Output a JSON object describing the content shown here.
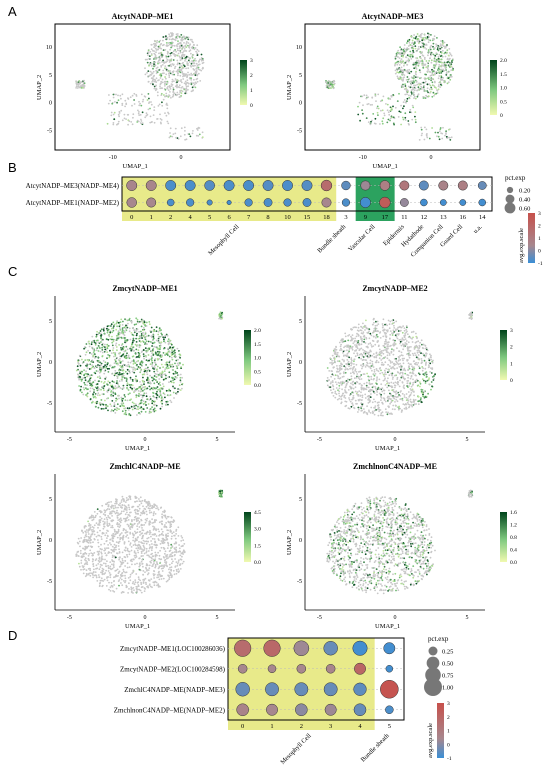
{
  "panels": [
    "A",
    "B",
    "C",
    "D"
  ],
  "colors": {
    "bg": "#ffffff",
    "grey": "#c8c8c8",
    "green_lo": "#d9f0a3",
    "green_mid": "#41ab5d",
    "green_hi": "#00441b",
    "yellow_band": "#e8ea8a",
    "teal_band": "#2ca25f",
    "dot_blue": "#3a8fd6",
    "dot_red": "#c7504b",
    "dot_mid": "#a7878e"
  },
  "chart_data": [
    {
      "type": "scatter",
      "panel": "A",
      "title": "AtcytNADP–ME1",
      "xlabel": "UMAP_1",
      "ylabel": "UMAP_2",
      "x_ticks": [
        "-10",
        "0"
      ],
      "y_ticks": [
        "10",
        "5",
        "0",
        "-5"
      ],
      "colorbar_ticks": [
        "3",
        "2",
        "1",
        "0"
      ]
    },
    {
      "type": "scatter",
      "panel": "A",
      "title": "AtcytNADP–ME3",
      "xlabel": "UMAP_1",
      "ylabel": "UMAP_2",
      "x_ticks": [
        "-10",
        "0"
      ],
      "y_ticks": [
        "10",
        "5",
        "0",
        "-5"
      ],
      "colorbar_ticks": [
        "2.0",
        "1.5",
        "1.0",
        "0.5",
        "0"
      ]
    },
    {
      "type": "dotplot",
      "panel": "B",
      "rows": [
        "AtcytNADP–ME3(NADP–ME4)",
        "AtcytNADP–ME1(NADP–ME2)"
      ],
      "clusters": [
        "0",
        "1",
        "2",
        "4",
        "5",
        "6",
        "7",
        "8",
        "10",
        "15",
        "18",
        "3",
        "9",
        "17",
        "11",
        "12",
        "13",
        "16",
        "14"
      ],
      "groups": [
        {
          "label": "Mesophyll Cell",
          "count": 11,
          "band": "yellow"
        },
        {
          "label": "Bundle sheath",
          "count": 1,
          "band": "none"
        },
        {
          "label": "Vascular Cell",
          "count": 2,
          "band": "teal"
        },
        {
          "label": "Epidermis",
          "count": 1,
          "band": "none"
        },
        {
          "label": "Hydathode",
          "count": 1,
          "band": "none"
        },
        {
          "label": "Companion Cell",
          "count": 1,
          "band": "none"
        },
        {
          "label": "Guard Cell",
          "count": 1,
          "band": "none"
        },
        {
          "label": "u.a.",
          "count": 1,
          "band": "none"
        }
      ],
      "pct_exp": [
        [
          0.55,
          0.55,
          0.55,
          0.55,
          0.52,
          0.55,
          0.55,
          0.55,
          0.55,
          0.55,
          0.6,
          0.4,
          0.45,
          0.5,
          0.45,
          0.45,
          0.45,
          0.45,
          0.35
        ],
        [
          0.5,
          0.45,
          0.25,
          0.3,
          0.15,
          0.1,
          0.3,
          0.35,
          0.3,
          0.35,
          0.45,
          0.3,
          0.55,
          0.6,
          0.35,
          0.25,
          0.2,
          0.2,
          0.25
        ]
      ],
      "avg_exp_scale": [
        [
          0.3,
          0.3,
          -0.8,
          -0.8,
          -0.7,
          -0.8,
          -0.8,
          -0.7,
          -0.8,
          -0.7,
          1.6,
          -0.6,
          0.1,
          0.6,
          1.0,
          -0.6,
          0.4,
          0.6,
          -0.5
        ],
        [
          0.2,
          0.2,
          -0.8,
          -0.8,
          -0.8,
          -0.9,
          -0.8,
          -0.8,
          -0.8,
          -0.8,
          0.2,
          -0.8,
          -0.9,
          2.4,
          0.0,
          -0.9,
          -0.9,
          -0.9,
          -0.9
        ]
      ],
      "legend_size_title": "pct.exp",
      "legend_size_labels": [
        "0.20",
        "0.40",
        "0.60"
      ],
      "legend_color_title": "avg.exp.scale",
      "legend_color_ticks": [
        "3",
        "2",
        "1",
        "0",
        "-1"
      ]
    },
    {
      "type": "scatter",
      "panel": "C",
      "title": "ZmcytNADP–ME1",
      "xlabel": "UMAP_1",
      "ylabel": "UMAP_2",
      "x_ticks": [
        "-5",
        "0",
        "5"
      ],
      "y_ticks": [
        "5",
        "0",
        "-5"
      ],
      "colorbar_ticks": [
        "2.0",
        "1.5",
        "1.0",
        "0.5",
        "0.0"
      ]
    },
    {
      "type": "scatter",
      "panel": "C",
      "title": "ZmcytNADP–ME2",
      "xlabel": "UMAP_1",
      "ylabel": "UMAP_2",
      "x_ticks": [
        "-5",
        "0",
        "5"
      ],
      "y_ticks": [
        "5",
        "0",
        "-5"
      ],
      "colorbar_ticks": [
        "3",
        "2",
        "1",
        "0"
      ]
    },
    {
      "type": "scatter",
      "panel": "C",
      "title": "ZmchlC4NADP–ME",
      "xlabel": "UMAP_1",
      "ylabel": "UMAP_2",
      "x_ticks": [
        "-5",
        "0",
        "5"
      ],
      "y_ticks": [
        "5",
        "0",
        "-5"
      ],
      "colorbar_ticks": [
        "4.5",
        "3.0",
        "1.5",
        "0.0"
      ]
    },
    {
      "type": "scatter",
      "panel": "C",
      "title": "ZmchlnonC4NADP–ME",
      "xlabel": "UMAP_1",
      "ylabel": "UMAP_2",
      "x_ticks": [
        "-5",
        "0",
        "5"
      ],
      "y_ticks": [
        "5",
        "0",
        "-5"
      ],
      "colorbar_ticks": [
        "1.6",
        "1.2",
        "0.8",
        "0.4",
        "0.0"
      ]
    },
    {
      "type": "dotplot",
      "panel": "D",
      "rows": [
        "ZmcytNADP–ME1(LOC100286036)",
        "ZmcytNADP–ME2(LOC100284598)",
        "ZmchlC4NADP–ME(NADP–ME3)",
        "ZmchlnonC4NADP–ME(NADP–ME2)"
      ],
      "clusters": [
        "0",
        "1",
        "2",
        "3",
        "4",
        "5"
      ],
      "groups": [
        {
          "label": "Mesophyll Cell",
          "count": 5,
          "band": "yellow"
        },
        {
          "label": "Bundle sheath",
          "count": 1,
          "band": "none"
        }
      ],
      "pct_exp": [
        [
          0.85,
          0.85,
          0.7,
          0.6,
          0.65,
          0.4
        ],
        [
          0.25,
          0.2,
          0.25,
          0.25,
          0.4,
          0.15
        ],
        [
          0.6,
          0.55,
          0.55,
          0.55,
          0.5,
          1.0
        ],
        [
          0.45,
          0.4,
          0.45,
          0.4,
          0.45,
          0.2
        ]
      ],
      "avg_exp_scale": [
        [
          1.6,
          1.8,
          0.1,
          -0.5,
          -0.9,
          -0.9
        ],
        [
          0.2,
          0.2,
          0.2,
          0.3,
          1.9,
          -0.9
        ],
        [
          -0.5,
          -0.5,
          -0.5,
          -0.5,
          -0.6,
          2.8
        ],
        [
          0.4,
          0.2,
          -0.1,
          0.1,
          -0.5,
          -0.8
        ]
      ],
      "legend_size_title": "pct.exp",
      "legend_size_labels": [
        "0.25",
        "0.50",
        "0.75",
        "1.00"
      ],
      "legend_color_title": "avg.exp.scale",
      "legend_color_ticks": [
        "3",
        "2",
        "1",
        "0",
        "-1"
      ]
    }
  ]
}
